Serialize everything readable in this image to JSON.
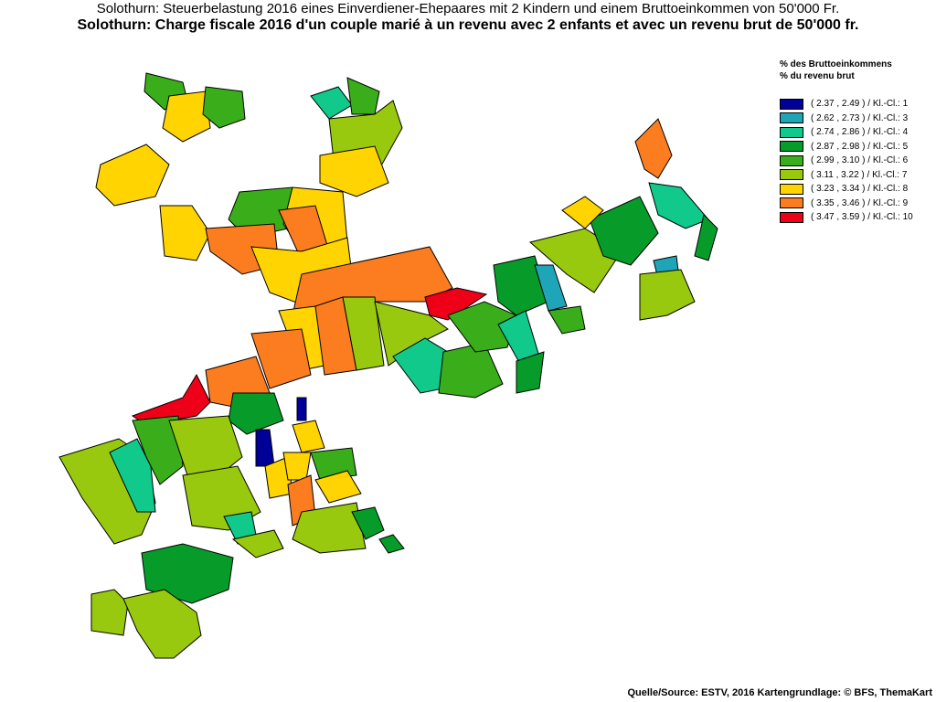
{
  "header": {
    "title_de": "Solothurn: Steuerbelastung 2016 eines Einverdiener-Ehepaares mit 2 Kindern und einem Bruttoeinkommen von 50'000 Fr.",
    "title_fr": "Solothurn: Charge fiscale 2016 d'un couple marié à un revenu avec 2 enfants et avec un revenu brut de 50'000 fr."
  },
  "legend": {
    "heading_de": "% des Bruttoeinkommens",
    "heading_fr": "% du revenu brut",
    "items": [
      {
        "label": "( 2.37 , 2.49 ) / Kl.-Cl.: 1",
        "color": "#000099"
      },
      {
        "label": "( 2.62 , 2.73 ) / Kl.-Cl.: 3",
        "color": "#1fa5b8"
      },
      {
        "label": "( 2.74 , 2.86 ) / Kl.-Cl.: 4",
        "color": "#10c98a"
      },
      {
        "label": "( 2.87 , 2.98 ) / Kl.-Cl.: 5",
        "color": "#079c2a"
      },
      {
        "label": "( 2.99 , 3.10 ) / Kl.-Cl.: 6",
        "color": "#3aad1b"
      },
      {
        "label": "( 3.11 , 3.22 ) / Kl.-Cl.: 7",
        "color": "#98c90e"
      },
      {
        "label": "( 3.23 , 3.34 ) / Kl.-Cl.: 8",
        "color": "#ffd400"
      },
      {
        "label": "( 3.35 , 3.46 ) / Kl.-Cl.: 9",
        "color": "#fb7d1f"
      },
      {
        "label": "( 3.47 , 3.59 ) / Kl.-Cl.: 10",
        "color": "#ee0019"
      }
    ]
  },
  "source": "Quelle/Source: ESTV, 2016 Kartengrundlage: © BFS, ThemaKart"
}
